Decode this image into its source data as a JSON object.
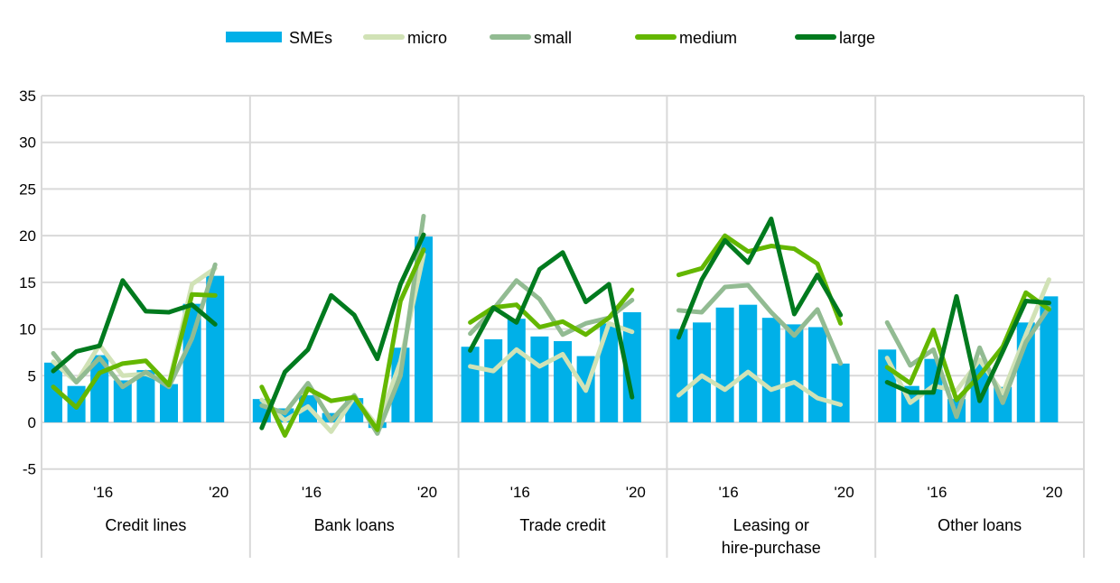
{
  "chart_data": {
    "type": "bar+line",
    "title": "",
    "ylim": [
      -5,
      35
    ],
    "yticks": [
      -5,
      0,
      5,
      10,
      15,
      20,
      25,
      30,
      35
    ],
    "grid": true,
    "legend_position": "top-center",
    "colors": {
      "SMEs": "#00b0e8",
      "micro": "#d1e2b6",
      "small": "#92bb92",
      "medium": "#64b700",
      "large": "#007a1e"
    },
    "series_names": [
      "SMEs",
      "micro",
      "small",
      "medium",
      "large"
    ],
    "bar_series": "SMEs",
    "panels": [
      {
        "label": [
          "Credit lines"
        ],
        "x_tick_labels": {
          "2": "'16",
          "7": "'20"
        },
        "SMEs": [
          6.4,
          3.9,
          7.2,
          4.5,
          5.6,
          4.1,
          12.7,
          15.7
        ],
        "micro": [
          6.5,
          4.3,
          8.3,
          5.0,
          5.2,
          4.2,
          14.8,
          16.5
        ],
        "small": [
          7.4,
          4.3,
          6.9,
          3.8,
          5.4,
          3.8,
          9.0,
          16.9
        ],
        "medium": [
          3.8,
          1.6,
          5.3,
          6.3,
          6.6,
          4.0,
          13.7,
          13.6
        ],
        "large": [
          5.5,
          7.6,
          8.2,
          15.2,
          11.9,
          11.8,
          12.6,
          10.5
        ]
      },
      {
        "label": [
          "Bank loans"
        ],
        "x_tick_labels": {
          "2": "'16",
          "7": "'20"
        },
        "SMEs": [
          2.5,
          1.5,
          2.9,
          1.0,
          2.6,
          -0.6,
          8.0,
          19.9
        ],
        "micro": [
          2.4,
          0.2,
          1.7,
          -1.0,
          2.7,
          -0.4,
          6.5,
          18.0
        ],
        "small": [
          1.8,
          1.0,
          4.2,
          0.2,
          2.9,
          -1.2,
          5.0,
          22.1
        ],
        "medium": [
          3.8,
          -1.4,
          3.6,
          2.3,
          2.7,
          -0.8,
          13.0,
          18.5
        ],
        "large": [
          -0.6,
          5.4,
          7.8,
          13.6,
          11.5,
          6.8,
          14.8,
          20.1
        ]
      },
      {
        "label": [
          "Trade credit"
        ],
        "x_tick_labels": {
          "2": "'16",
          "7": "'20"
        },
        "SMEs": [
          8.1,
          8.9,
          11.1,
          9.2,
          8.7,
          7.1,
          10.6,
          11.8
        ],
        "micro": [
          6.0,
          5.5,
          7.8,
          6.0,
          7.3,
          3.4,
          10.6,
          9.7
        ],
        "small": [
          9.5,
          12.1,
          15.2,
          13.2,
          9.4,
          10.6,
          11.2,
          13.1
        ],
        "medium": [
          10.7,
          12.3,
          12.6,
          10.2,
          10.8,
          9.4,
          11.2,
          14.2
        ],
        "large": [
          7.7,
          12.3,
          10.7,
          16.4,
          18.2,
          12.9,
          14.8,
          2.7
        ]
      },
      {
        "label": [
          "Leasing or",
          "hire-purchase"
        ],
        "x_tick_labels": {
          "2": "'16",
          "7": "'20"
        },
        "SMEs": [
          10.0,
          10.7,
          12.3,
          12.6,
          11.2,
          10.5,
          10.2,
          6.3
        ],
        "micro": [
          2.9,
          5.0,
          3.5,
          5.4,
          3.5,
          4.3,
          2.6,
          1.9
        ],
        "small": [
          12.0,
          11.8,
          14.5,
          14.7,
          11.8,
          9.3,
          12.1,
          6.3
        ],
        "medium": [
          15.8,
          16.5,
          20.0,
          18.3,
          18.9,
          18.6,
          17.0,
          10.6
        ],
        "large": [
          9.1,
          15.3,
          19.5,
          17.1,
          21.8,
          11.6,
          15.8,
          11.5
        ]
      },
      {
        "label": [
          "Other loans"
        ],
        "x_tick_labels": {
          "2": "'16",
          "7": "'20"
        },
        "SMEs": [
          7.8,
          3.9,
          6.8,
          2.5,
          6.3,
          3.8,
          10.7,
          13.5
        ],
        "micro": [
          6.9,
          2.1,
          3.9,
          3.4,
          6.7,
          3.1,
          9.4,
          15.3
        ],
        "small": [
          10.7,
          6.1,
          7.8,
          0.6,
          8.0,
          2.1,
          8.6,
          12.3
        ],
        "medium": [
          5.9,
          4.2,
          9.9,
          2.4,
          5.0,
          8.1,
          13.9,
          12.1
        ],
        "large": [
          4.3,
          3.2,
          3.2,
          13.5,
          2.3,
          7.6,
          13.0,
          12.8
        ]
      }
    ]
  }
}
